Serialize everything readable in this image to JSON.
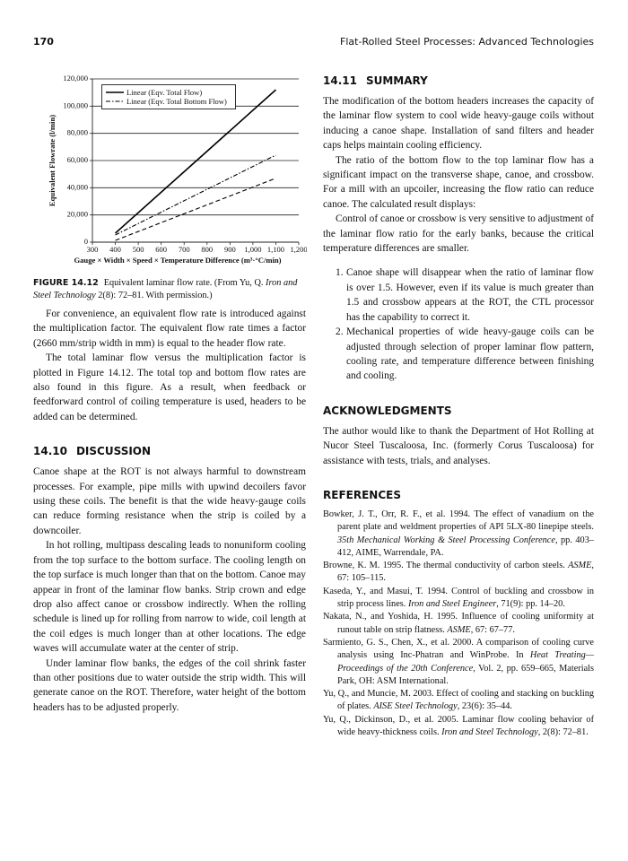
{
  "header": {
    "page_number": "170",
    "running_title": "Flat-Rolled Steel Processes: Advanced Technologies"
  },
  "chart_data": {
    "type": "line",
    "y_label": "Equivalent Flowrate (l/min)",
    "x_label": "Gauge × Width × Speed × Temperature Difference (m³·°C/min)",
    "x": [
      400,
      1100
    ],
    "series": [
      {
        "name": "Linear (Eqv. Total Flow)",
        "color": "#000000",
        "dash": "solid",
        "values": [
          6600,
          112000
        ]
      },
      {
        "name": "Linear (Eqv. Total Bottom Flow)",
        "color": "#000000",
        "dash": "dashdot",
        "values": [
          5300,
          64000
        ]
      },
      {
        "name": null,
        "color": "#000000",
        "dash": "dashed",
        "values": [
          1300,
          47000
        ]
      }
    ],
    "xlim": [
      300,
      1200
    ],
    "xticks": [
      300,
      400,
      500,
      600,
      700,
      800,
      900,
      {
        "value": 1000,
        "label": "1,000"
      },
      {
        "value": 1100,
        "label": "1,100"
      },
      {
        "value": 1200,
        "label": "1,200"
      }
    ],
    "ylim": [
      0,
      120000
    ],
    "yticks": [
      0,
      {
        "value": 20000,
        "label": "20,000"
      },
      {
        "value": 40000,
        "label": "40,000"
      },
      {
        "value": 60000,
        "label": "60,000"
      },
      {
        "value": 80000,
        "label": "80,000"
      },
      {
        "value": 100000,
        "label": "100,000"
      },
      {
        "value": 120000,
        "label": "120,000"
      }
    ],
    "grid": true
  },
  "figure_caption": {
    "label": "FIGURE 14.12",
    "runs": [
      {
        "text": "Equivalent laminar flow rate. (From Yu, Q. "
      },
      {
        "text": "Iron and Steel Technology",
        "italic": true
      },
      {
        "text": " 2(8): 72–81. With permission.)"
      }
    ]
  },
  "left": [
    {
      "type": "paragraph",
      "text": "For convenience, an equivalent flow rate is introduced against the multiplication factor. The equivalent flow rate times a factor (2660 mm/strip width in mm) is equal to the header flow rate."
    },
    {
      "type": "paragraph",
      "text": "The total laminar flow versus the multiplication factor is plotted in Figure 14.12. The total top and bottom flow rates are also found in this figure. As a result, when feedback or feedforward control of coiling temperature is used, headers to be added can be determined."
    },
    {
      "type": "heading",
      "number": "14.10",
      "title": "DISCUSSION"
    },
    {
      "type": "paragraph",
      "text": "Canoe shape at the ROT is not always harmful to downstream processes. For example, pipe mills with upwind decoilers favor using these coils. The benefit is that the wide heavy-gauge coils can reduce forming resistance when the strip is coiled by a downcoiler."
    },
    {
      "type": "paragraph",
      "text": "In hot rolling, multipass descaling leads to nonuniform cooling from the top surface to the bottom surface. The cooling length on the top surface is much longer than that on the bottom. Canoe may appear in front of the laminar flow banks. Strip crown and edge drop also affect canoe or crossbow indirectly. When the rolling schedule is lined up for rolling from narrow to wide, coil length at the coil edges is much longer than at other locations. The edge waves will accumulate water at the center of strip."
    },
    {
      "type": "paragraph",
      "text": "Under laminar flow banks, the edges of the coil shrink faster than other positions due to water outside the strip width. This will generate canoe on the ROT. Therefore, water height of the bottom headers has to be adjusted properly."
    }
  ],
  "right": [
    {
      "type": "heading",
      "number": "14.11",
      "title": "SUMMARY"
    },
    {
      "type": "paragraph",
      "text": "The modification of the bottom headers increases the capacity of the laminar flow system to cool wide heavy-gauge coils without inducing a canoe shape. Installation of sand filters and header caps helps maintain cooling efficiency."
    },
    {
      "type": "paragraph",
      "text": "The ratio of the bottom flow to the top laminar flow has a significant impact on the transverse shape, canoe, and crossbow. For a mill with an upcoiler, increasing the flow ratio can reduce canoe. The calculated result displays:"
    },
    {
      "type": "paragraph",
      "text": "Control of canoe or crossbow is very sensitive to adjustment of the laminar flow ratio for the early banks, because the critical temperature differences are smaller."
    },
    {
      "type": "list_item",
      "number": "1.",
      "text": "Canoe shape will disappear when the ratio of laminar flow is over 1.5. However, even if its value is much greater than 1.5 and crossbow appears at the ROT, the CTL processor has the capability to correct it."
    },
    {
      "type": "list_item",
      "number": "2.",
      "text": "Mechanical properties of wide heavy-gauge coils can be adjusted through selection of proper laminar flow pattern, cooling rate, and temperature difference between finishing and cooling."
    },
    {
      "type": "heading",
      "title": "ACKNOWLEDGMENTS"
    },
    {
      "type": "paragraph",
      "text": "The author would like to thank the Department of Hot Rolling at Nucor Steel Tuscaloosa, Inc. (formerly Corus Tuscaloosa) for assistance with tests, trials, and analyses."
    },
    {
      "type": "heading",
      "title": "REFERENCES"
    },
    {
      "type": "reference",
      "runs": [
        {
          "text": "Bowker, J. T., Orr, R. F., et al. 1994. The effect of vanadium on the parent plate and weldment properties of API 5LX-80 linepipe steels. "
        },
        {
          "text": "35th Mechanical Working & Steel Processing Conference",
          "italic": true
        },
        {
          "text": ", pp. 403–412, AIME, Warrendale, PA."
        }
      ]
    },
    {
      "type": "reference",
      "runs": [
        {
          "text": "Browne, K. M. 1995. The thermal conductivity of carbon steels. "
        },
        {
          "text": "ASME",
          "italic": true
        },
        {
          "text": ", 67: 105–115."
        }
      ]
    },
    {
      "type": "reference",
      "runs": [
        {
          "text": "Kaseda, Y., and Masui, T. 1994. Control of buckling and crossbow in strip process lines. "
        },
        {
          "text": "Iron and Steel Engineer",
          "italic": true
        },
        {
          "text": ", 71(9): pp. 14–20."
        }
      ]
    },
    {
      "type": "reference",
      "runs": [
        {
          "text": "Nakata, N., and Yoshida, H. 1995. Influence of cooling uniformity at runout table on strip flatness. "
        },
        {
          "text": "ASME",
          "italic": true
        },
        {
          "text": ", 67: 67–77."
        }
      ]
    },
    {
      "type": "reference",
      "runs": [
        {
          "text": "Sarmiento, G. S., Chen, X., et al. 2000. A comparison of cooling curve analysis using Inc-Phatran and WinProbe. In "
        },
        {
          "text": "Heat Treating—Proceedings of the 20th Conference",
          "italic": true
        },
        {
          "text": ", Vol. 2, pp. 659–665, Materials Park, OH: ASM International."
        }
      ]
    },
    {
      "type": "reference",
      "runs": [
        {
          "text": "Yu, Q., and Muncie, M. 2003. Effect of cooling and stacking on buckling of plates. "
        },
        {
          "text": "AISE Steel Technology",
          "italic": true
        },
        {
          "text": ", 23(6): 35–44."
        }
      ]
    },
    {
      "type": "reference",
      "runs": [
        {
          "text": "Yu, Q., Dickinson, D., et al. 2005. Laminar flow cooling behavior of wide heavy-thickness coils. "
        },
        {
          "text": "Iron and Steel Technology",
          "italic": true
        },
        {
          "text": ", 2(8): 72–81."
        }
      ]
    }
  ]
}
